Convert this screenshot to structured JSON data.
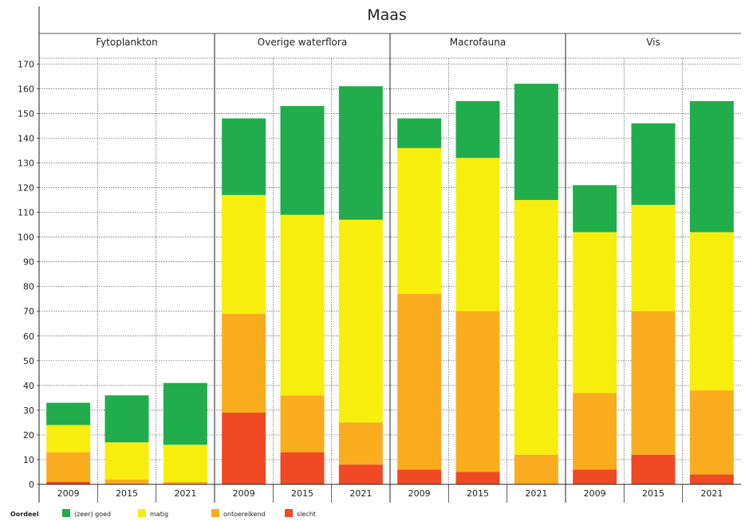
{
  "chart_data": {
    "type": "bar",
    "stacked": true,
    "title": "Maas",
    "ylim": [
      0,
      170
    ],
    "yticks": [
      0,
      10,
      20,
      30,
      40,
      50,
      60,
      70,
      80,
      90,
      100,
      110,
      120,
      130,
      140,
      150,
      160,
      170
    ],
    "grid": true,
    "legend_position": "bottom",
    "legend_title": "Oordeel",
    "colors": {
      "(zeer) goed": "#21ad4b",
      "matig": "#f7ee0d",
      "ontoereikend": "#f9ad1e",
      "slecht": "#ef4a23"
    },
    "stack_order": [
      "slecht",
      "ontoereikend",
      "matig",
      "(zeer) goed"
    ],
    "legend_order": [
      "(zeer) goed",
      "matig",
      "ontoereikend",
      "slecht"
    ],
    "panels": [
      {
        "title": "Fytoplankton",
        "categories": [
          "2009",
          "2015",
          "2021"
        ],
        "series": [
          {
            "name": "slecht",
            "values": [
              1,
              0,
              0
            ]
          },
          {
            "name": "ontoereikend",
            "values": [
              12,
              2,
              1
            ]
          },
          {
            "name": "matig",
            "values": [
              11,
              15,
              15
            ]
          },
          {
            "name": "(zeer) goed",
            "values": [
              9,
              19,
              25
            ]
          }
        ]
      },
      {
        "title": "Overige waterflora",
        "categories": [
          "2009",
          "2015",
          "2021"
        ],
        "series": [
          {
            "name": "slecht",
            "values": [
              29,
              13,
              8
            ]
          },
          {
            "name": "ontoereikend",
            "values": [
              40,
              23,
              17
            ]
          },
          {
            "name": "matig",
            "values": [
              48,
              73,
              82
            ]
          },
          {
            "name": "(zeer) goed",
            "values": [
              31,
              44,
              54
            ]
          }
        ]
      },
      {
        "title": "Macrofauna",
        "categories": [
          "2009",
          "2015",
          "2021"
        ],
        "series": [
          {
            "name": "slecht",
            "values": [
              6,
              5,
              0
            ]
          },
          {
            "name": "ontoereikend",
            "values": [
              71,
              65,
              12
            ]
          },
          {
            "name": "matig",
            "values": [
              59,
              62,
              103
            ]
          },
          {
            "name": "(zeer) goed",
            "values": [
              12,
              23,
              47
            ]
          }
        ]
      },
      {
        "title": "Vis",
        "categories": [
          "2009",
          "2015",
          "2021"
        ],
        "series": [
          {
            "name": "slecht",
            "values": [
              6,
              12,
              4
            ]
          },
          {
            "name": "ontoereikend",
            "values": [
              31,
              58,
              34
            ]
          },
          {
            "name": "matig",
            "values": [
              65,
              43,
              64
            ]
          },
          {
            "name": "(zeer) goed",
            "values": [
              19,
              33,
              53
            ]
          }
        ]
      }
    ]
  }
}
